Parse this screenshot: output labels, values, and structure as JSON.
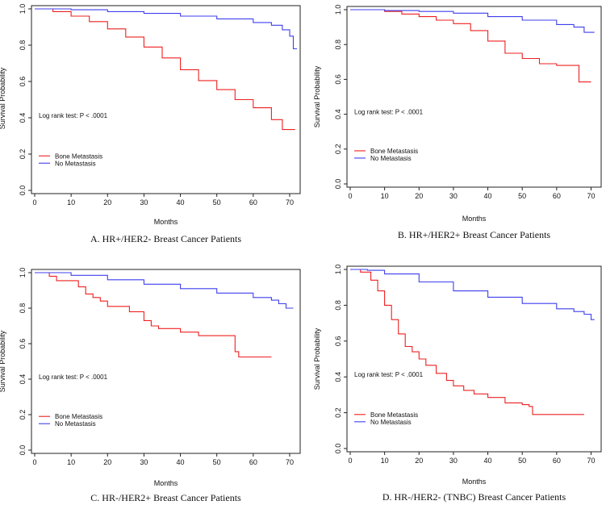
{
  "chart_data": [
    {
      "type": "line",
      "title": "A.  HR+/HER2- Breast Cancer Patients",
      "xlabel": "Months",
      "ylabel": "Survival Probability",
      "xlim": [
        0,
        72
      ],
      "ylim": [
        0,
        1.0
      ],
      "x_ticks": [
        "0",
        "10",
        "20",
        "30",
        "40",
        "50",
        "60",
        "70"
      ],
      "y_ticks": [
        "0.0",
        "0.2",
        "0.4",
        "0.6",
        "0.8",
        "1.0"
      ],
      "annotation": "Log rank test: P < .0001",
      "legend": [
        "Bone Metastasis",
        "No Metastasis"
      ],
      "series": [
        {
          "name": "Bone Metastasis",
          "color": "#ee2020",
          "x": [
            0,
            5,
            10,
            15,
            20,
            25,
            30,
            35,
            40,
            45,
            50,
            55,
            60,
            65,
            68,
            70,
            71.5
          ],
          "y": [
            1.0,
            0.985,
            0.96,
            0.93,
            0.89,
            0.845,
            0.79,
            0.73,
            0.665,
            0.605,
            0.555,
            0.5,
            0.455,
            0.39,
            0.335,
            0.335,
            0.335
          ]
        },
        {
          "name": "No Metastasis",
          "color": "#3f3fee",
          "x": [
            0,
            10,
            20,
            30,
            40,
            50,
            60,
            65,
            68,
            70,
            71,
            72
          ],
          "y": [
            1.0,
            0.995,
            0.985,
            0.975,
            0.96,
            0.945,
            0.925,
            0.91,
            0.885,
            0.85,
            0.78,
            0.78
          ]
        }
      ]
    },
    {
      "type": "line",
      "title": "B.  HR+/HER2+ Breast Cancer Patients",
      "xlabel": "Months",
      "ylabel": "Survival Probability",
      "xlim": [
        0,
        72
      ],
      "ylim": [
        0,
        1.0
      ],
      "x_ticks": [
        "0",
        "10",
        "20",
        "30",
        "40",
        "50",
        "60",
        "70"
      ],
      "y_ticks": [
        "0.0",
        "0.2",
        "0.4",
        "0.6",
        "0.8",
        "1.0"
      ],
      "annotation": "Log rank test: P < .0001",
      "legend": [
        "Bone Metastasis",
        "No Metastasis"
      ],
      "series": [
        {
          "name": "Bone Metastasis",
          "color": "#ee2020",
          "x": [
            0,
            5,
            10,
            15,
            20,
            25,
            30,
            35,
            40,
            45,
            50,
            55,
            60,
            66,
            66.5,
            70
          ],
          "y": [
            1.0,
            1.0,
            0.99,
            0.975,
            0.96,
            0.94,
            0.92,
            0.88,
            0.82,
            0.75,
            0.72,
            0.69,
            0.68,
            0.68,
            0.585,
            0.585
          ]
        },
        {
          "name": "No Metastasis",
          "color": "#3f3fee",
          "x": [
            0,
            10,
            20,
            30,
            40,
            50,
            60,
            65,
            68,
            71
          ],
          "y": [
            1.0,
            0.995,
            0.99,
            0.98,
            0.96,
            0.94,
            0.915,
            0.9,
            0.87,
            0.87
          ]
        }
      ]
    },
    {
      "type": "line",
      "title": "C.  HR-/HER2+ Breast Cancer Patients",
      "xlabel": "Months",
      "ylabel": "Survival Probability",
      "xlim": [
        0,
        72
      ],
      "ylim": [
        0,
        1.0
      ],
      "x_ticks": [
        "0",
        "10",
        "20",
        "30",
        "40",
        "50",
        "60",
        "70"
      ],
      "y_ticks": [
        "0.0",
        "0.2",
        "0.4",
        "0.6",
        "0.8",
        "1.0"
      ],
      "annotation": "Log rank test: P < .0001",
      "legend": [
        "Bone Metastasis",
        "No Metastasis"
      ],
      "series": [
        {
          "name": "Bone Metastasis",
          "color": "#ee2020",
          "x": [
            0,
            4,
            6,
            10,
            12,
            14,
            16,
            18,
            20,
            24,
            26,
            30,
            32,
            34,
            38,
            40,
            45,
            50,
            54,
            55,
            56,
            60,
            65
          ],
          "y": [
            1.0,
            0.98,
            0.955,
            0.955,
            0.92,
            0.88,
            0.86,
            0.84,
            0.81,
            0.81,
            0.78,
            0.73,
            0.7,
            0.685,
            0.685,
            0.665,
            0.645,
            0.645,
            0.645,
            0.555,
            0.525,
            0.525,
            0.525
          ]
        },
        {
          "name": "No Metastasis",
          "color": "#3f3fee",
          "x": [
            0,
            10,
            20,
            30,
            40,
            50,
            60,
            65,
            67,
            69,
            71
          ],
          "y": [
            1.0,
            0.985,
            0.96,
            0.935,
            0.91,
            0.885,
            0.86,
            0.845,
            0.825,
            0.8,
            0.8
          ]
        }
      ]
    },
    {
      "type": "line",
      "title": "D.  HR-/HER2- (TNBC) Breast Cancer Patients",
      "xlabel": "Months",
      "ylabel": "Survival Probability",
      "xlim": [
        0,
        72
      ],
      "ylim": [
        0,
        1.0
      ],
      "x_ticks": [
        "0",
        "10",
        "20",
        "30",
        "40",
        "50",
        "60",
        "70"
      ],
      "y_ticks": [
        "0.0",
        "0.2",
        "0.4",
        "0.6",
        "0.8",
        "1.0"
      ],
      "annotation": "Log rank test: P < .0001",
      "legend": [
        "Bone Metastasis",
        "No Metastasis"
      ],
      "series": [
        {
          "name": "Bone Metastasis",
          "color": "#ee2020",
          "x": [
            0,
            3,
            6,
            8,
            10,
            12,
            14,
            16,
            18,
            20,
            22,
            25,
            28,
            30,
            33,
            36,
            40,
            45,
            50,
            52,
            53,
            60,
            68
          ],
          "y": [
            1.0,
            0.985,
            0.94,
            0.88,
            0.8,
            0.72,
            0.64,
            0.57,
            0.54,
            0.5,
            0.465,
            0.42,
            0.38,
            0.35,
            0.325,
            0.305,
            0.285,
            0.255,
            0.245,
            0.235,
            0.19,
            0.19,
            0.19
          ]
        },
        {
          "name": "No Metastasis",
          "color": "#3f3fee",
          "x": [
            0,
            5,
            10,
            20,
            30,
            40,
            50,
            60,
            65,
            68,
            70,
            71
          ],
          "y": [
            1.0,
            0.995,
            0.975,
            0.93,
            0.88,
            0.845,
            0.81,
            0.78,
            0.765,
            0.75,
            0.72,
            0.72
          ]
        }
      ]
    }
  ]
}
